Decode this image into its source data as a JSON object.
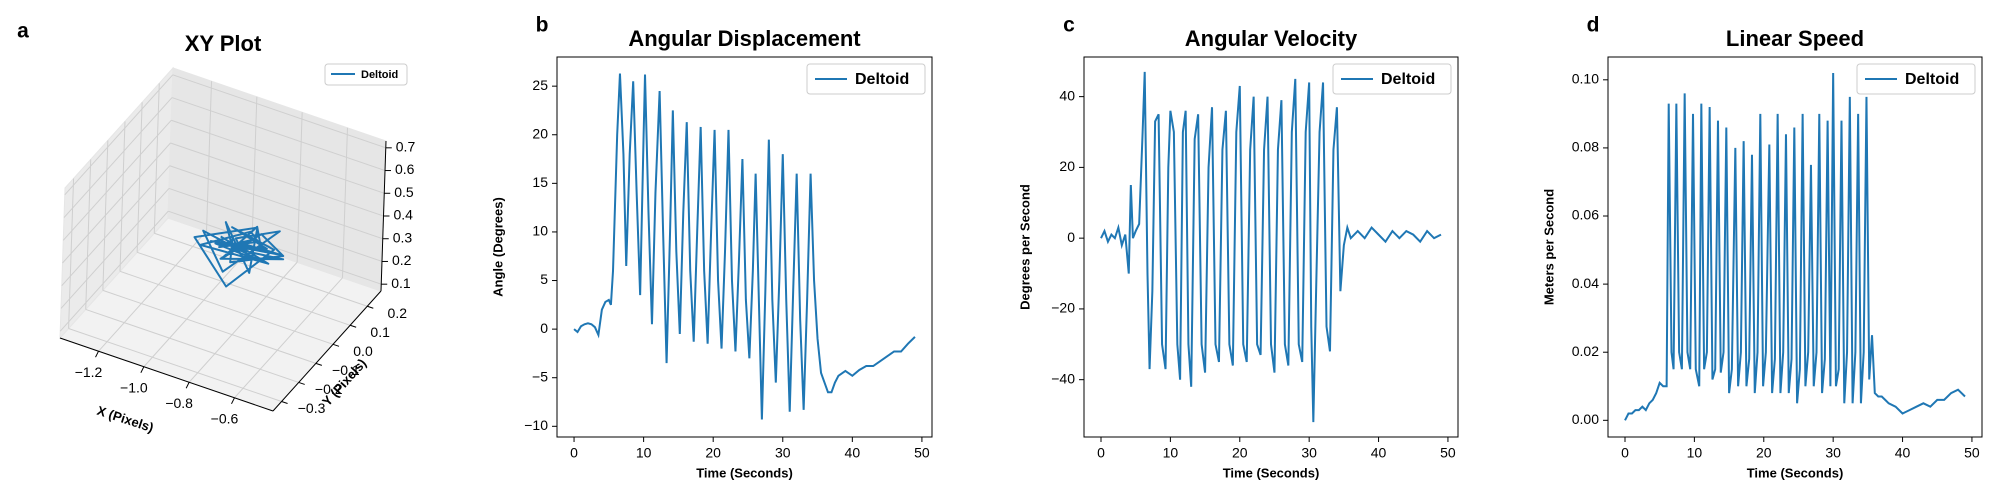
{
  "chart_data": [
    {
      "type": "line3d",
      "panel_label": "a",
      "title": "XY Plot",
      "xlabel": "X (Pixels)",
      "ylabel": "Y (Pixels)",
      "series": [
        {
          "name": "Deltoid",
          "color": "#1f77b4"
        }
      ],
      "x": [
        -0.95,
        -0.8,
        -0.88,
        -0.72,
        -0.9,
        -0.78,
        -1.02,
        -0.85,
        -0.7,
        -0.92,
        -0.83,
        -0.76,
        -0.98,
        -0.87,
        -0.74,
        -0.91,
        -0.8,
        -0.68,
        -0.86,
        -0.95,
        -0.79,
        -0.88,
        -0.73,
        -0.84,
        -1.05,
        -0.82,
        -0.77,
        -0.93,
        -0.86,
        -0.71,
        -0.89,
        -0.81,
        -0.97,
        -0.75,
        -0.85,
        -0.9,
        -0.78,
        -0.66,
        -0.84,
        -0.92
      ],
      "y": [
        0.02,
        -0.05,
        0.06,
        0.0,
        -0.08,
        0.04,
        0.01,
        -0.1,
        0.03,
        0.07,
        -0.03,
        0.05,
        -0.06,
        0.09,
        -0.02,
        0.03,
        -0.07,
        0.02,
        0.05,
        -0.04,
        0.08,
        -0.01,
        0.04,
        -0.09,
        0.0,
        0.06,
        -0.05,
        0.02,
        -0.03,
        0.07,
        -0.06,
        0.01,
        0.04,
        -0.02,
        0.1,
        -0.04,
        0.03,
        0.0,
        -0.07,
        0.05
      ],
      "z": [
        0.35,
        0.4,
        0.3,
        0.38,
        0.42,
        0.28,
        0.36,
        0.33,
        0.45,
        0.31,
        0.39,
        0.27,
        0.37,
        0.34,
        0.41,
        0.29,
        0.43,
        0.36,
        0.32,
        0.38,
        0.3,
        0.44,
        0.35,
        0.26,
        0.33,
        0.4,
        0.31,
        0.42,
        0.37,
        0.29,
        0.34,
        0.39,
        0.28,
        0.43,
        0.36,
        0.32,
        0.41,
        0.38,
        0.35,
        0.33
      ],
      "xlim": [
        -1.37,
        -0.43
      ],
      "ylim": [
        -0.35,
        0.28
      ],
      "zlim": [
        0.07,
        0.73
      ],
      "xticks": [
        {
          "value": -1.2,
          "label": "−1.2"
        },
        {
          "value": -1.0,
          "label": "−1.0"
        },
        {
          "value": -0.8,
          "label": "−0.8"
        },
        {
          "value": -0.6,
          "label": "−0.6"
        }
      ],
      "yticks": [
        {
          "value": -0.3,
          "label": "−0.3"
        },
        {
          "value": -0.2,
          "label": "−0.2"
        },
        {
          "value": -0.1,
          "label": "−0.1"
        },
        {
          "value": 0,
          "label": "0.0"
        },
        0.1,
        0.2
      ],
      "zticks": [
        0.1,
        0.2,
        0.3,
        0.4,
        0.5,
        0.6,
        0.7
      ],
      "legend": "upper right"
    },
    {
      "type": "line",
      "panel_label": "b",
      "title": "Angular Displacement",
      "xlabel": "Time (Seconds)",
      "ylabel": "Angle (Degrees)",
      "x": [
        0,
        0.5,
        1,
        1.5,
        2,
        2.5,
        3,
        3.5,
        4,
        4.5,
        5,
        5.3,
        5.6,
        6.2,
        6.6,
        7.1,
        7.5,
        8,
        8.5,
        9,
        9.5,
        10,
        10.2,
        10.7,
        11.2,
        11.7,
        12.3,
        12.8,
        13.3,
        13.8,
        14.2,
        14.7,
        15.2,
        15.7,
        16.2,
        16.7,
        17.2,
        17.7,
        18.2,
        18.7,
        19.2,
        19.7,
        20.2,
        20.7,
        21.2,
        21.7,
        22.2,
        22.7,
        23.2,
        23.7,
        24.2,
        24.7,
        25.2,
        25.7,
        26.1,
        26.6,
        27,
        27.5,
        28,
        28.5,
        29,
        29.5,
        30,
        30.5,
        31,
        31.5,
        32,
        32.5,
        33,
        33.5,
        34,
        34.5,
        35,
        35.5,
        36,
        36.5,
        37,
        37.5,
        38,
        39,
        40,
        41,
        42,
        43,
        44,
        45,
        46,
        47,
        48,
        49
      ],
      "series": [
        {
          "name": "Deltoid",
          "color": "#1f77b4",
          "values": [
            0,
            -0.3,
            0.3,
            0.5,
            0.6,
            0.5,
            0.2,
            -0.6,
            2,
            2.8,
            3,
            2.5,
            6,
            20,
            26.3,
            18,
            6.5,
            18,
            25.5,
            14,
            3.5,
            20,
            26.2,
            12,
            0.5,
            14,
            24.5,
            10,
            -3.5,
            10,
            22.5,
            8,
            -0.5,
            12,
            21.3,
            6,
            -1.3,
            10,
            20.8,
            6,
            -1.5,
            10,
            20.5,
            5,
            -2,
            8,
            20.5,
            5,
            -2.3,
            7,
            17.5,
            3,
            -3,
            6,
            16,
            2,
            -9.3,
            4,
            19.5,
            3,
            -5.5,
            5,
            18,
            3,
            -8.5,
            4,
            16,
            1,
            -8.3,
            3,
            16,
            5,
            -1,
            -4.5,
            -5.5,
            -6.5,
            -6.5,
            -5.5,
            -4.8,
            -4.3,
            -4.8,
            -4.2,
            -3.8,
            -3.8,
            -3.3,
            -2.8,
            -2.3,
            -2.3,
            -1.5,
            -0.8
          ]
        }
      ],
      "xlim": [
        -2.45,
        51.45
      ],
      "ylim": [
        -11.1,
        28.0
      ],
      "xticks": [
        0,
        10,
        20,
        30,
        40,
        50
      ],
      "yticks": [
        {
          "value": -10,
          "label": "−10"
        },
        {
          "value": -5,
          "label": "−5"
        },
        0,
        5,
        10,
        15,
        20,
        25
      ],
      "legend": "upper right"
    },
    {
      "type": "line",
      "panel_label": "c",
      "title": "Angular Velocity",
      "xlabel": "Time (Seconds)",
      "ylabel": "Degrees per Second",
      "x": [
        0,
        0.5,
        1,
        1.5,
        2,
        2.5,
        3,
        3.5,
        4,
        4.3,
        4.6,
        5,
        5.5,
        6,
        6.3,
        6.7,
        7,
        7.4,
        7.8,
        8.3,
        8.8,
        9.3,
        9.7,
        10,
        10.5,
        11,
        11.4,
        11.8,
        12.2,
        12.6,
        13,
        13.5,
        14,
        14.5,
        15,
        15.5,
        16,
        16.5,
        17,
        17.5,
        18,
        18.5,
        19,
        19.5,
        20,
        20.5,
        21,
        21.5,
        22,
        22.5,
        23,
        23.5,
        24,
        24.5,
        25,
        25.5,
        26,
        26.5,
        27,
        27.5,
        28,
        28.5,
        29,
        29.5,
        30,
        30.3,
        30.6,
        31,
        31.5,
        32,
        32.5,
        33,
        33.5,
        34,
        34.5,
        35,
        35.5,
        36,
        37,
        38,
        39,
        40,
        41,
        42,
        43,
        44,
        45,
        46,
        47,
        48,
        49
      ],
      "series": [
        {
          "name": "Deltoid",
          "color": "#1f77b4",
          "values": [
            0,
            2,
            -1,
            1,
            0,
            3,
            -2,
            1,
            -10,
            15,
            0,
            2,
            4,
            30,
            47,
            -10,
            -37,
            -15,
            33,
            35,
            -30,
            -37,
            20,
            36,
            30,
            -30,
            -40,
            30,
            36,
            -30,
            -42,
            28,
            35,
            -30,
            -38,
            20,
            37,
            -30,
            -35,
            25,
            36,
            -30,
            -36,
            30,
            43,
            -30,
            -35,
            25,
            40,
            -30,
            -33,
            25,
            40,
            -30,
            -38,
            25,
            39,
            -30,
            -36,
            30,
            45,
            -30,
            -35,
            30,
            44,
            -25,
            -52,
            -15,
            30,
            44,
            -25,
            -32,
            25,
            37,
            -15,
            -2,
            3,
            0,
            2,
            0,
            3,
            1,
            -1,
            2,
            0,
            2,
            1,
            -1,
            2,
            0,
            1
          ]
        }
      ],
      "xlim": [
        -2.45,
        51.45
      ],
      "ylim": [
        -56.2,
        51.2
      ],
      "xticks": [
        0,
        10,
        20,
        30,
        40,
        50
      ],
      "yticks": [
        {
          "value": -40,
          "label": "−40"
        },
        {
          "value": -20,
          "label": "−20"
        },
        0,
        20,
        40
      ],
      "legend": "upper right"
    },
    {
      "type": "line",
      "panel_label": "d",
      "title": "Linear Speed",
      "xlabel": "Time (Seconds)",
      "ylabel": "Meters per Second",
      "x": [
        0,
        0.5,
        1,
        1.5,
        2,
        2.5,
        3,
        3.5,
        4,
        4.5,
        5,
        5.5,
        6,
        6.3,
        6.7,
        7,
        7.4,
        7.8,
        8.2,
        8.6,
        9,
        9.4,
        9.8,
        10.2,
        10.7,
        11,
        11.4,
        11.8,
        12.2,
        12.6,
        13,
        13.4,
        13.8,
        14.2,
        14.6,
        15,
        15.4,
        15.9,
        16.3,
        16.7,
        17.1,
        17.5,
        17.9,
        18.3,
        18.7,
        19.1,
        19.5,
        19.9,
        20.3,
        20.8,
        21.2,
        21.6,
        22,
        22.4,
        22.8,
        23.2,
        23.6,
        24,
        24.4,
        24.8,
        25.2,
        25.6,
        26,
        26.4,
        26.8,
        27.2,
        27.6,
        28,
        28.4,
        28.8,
        29.2,
        29.6,
        30,
        30.4,
        30.8,
        31.2,
        31.6,
        32,
        32.4,
        32.8,
        33.2,
        33.6,
        34,
        34.4,
        34.8,
        35.2,
        35.6,
        36,
        36.5,
        37,
        37.5,
        38,
        39,
        40,
        41,
        42,
        43,
        44,
        45,
        46,
        47,
        48,
        49
      ],
      "series": [
        {
          "name": "Deltoid",
          "color": "#1f77b4",
          "values": [
            0,
            0.002,
            0.002,
            0.003,
            0.003,
            0.004,
            0.003,
            0.005,
            0.006,
            0.008,
            0.011,
            0.01,
            0.01,
            0.093,
            0.02,
            0.015,
            0.093,
            0.02,
            0.015,
            0.096,
            0.02,
            0.015,
            0.09,
            0.015,
            0.01,
            0.093,
            0.015,
            0.02,
            0.092,
            0.012,
            0.015,
            0.088,
            0.014,
            0.02,
            0.086,
            0.008,
            0.015,
            0.08,
            0.01,
            0.02,
            0.082,
            0.01,
            0.018,
            0.078,
            0.008,
            0.02,
            0.09,
            0.01,
            0.02,
            0.081,
            0.008,
            0.018,
            0.09,
            0.008,
            0.02,
            0.084,
            0.008,
            0.018,
            0.086,
            0.005,
            0.015,
            0.09,
            0.01,
            0.02,
            0.075,
            0.01,
            0.02,
            0.09,
            0.008,
            0.018,
            0.088,
            0.01,
            0.102,
            0.01,
            0.015,
            0.088,
            0.005,
            0.02,
            0.095,
            0.005,
            0.02,
            0.09,
            0.005,
            0.02,
            0.095,
            0.012,
            0.025,
            0.008,
            0.007,
            0.007,
            0.006,
            0.005,
            0.004,
            0.002,
            0.003,
            0.004,
            0.005,
            0.004,
            0.006,
            0.006,
            0.008,
            0.009,
            0.007
          ]
        }
      ],
      "xlim": [
        -2.45,
        51.45
      ],
      "ylim": [
        -0.0049,
        0.1067
      ],
      "xticks": [
        0,
        10,
        20,
        30,
        40,
        50
      ],
      "yticks": [
        {
          "value": 0,
          "label": "0.00"
        },
        0.02,
        0.04,
        0.06,
        0.08,
        {
          "value": 0.1,
          "label": "0.10"
        }
      ],
      "legend": "upper right"
    }
  ]
}
